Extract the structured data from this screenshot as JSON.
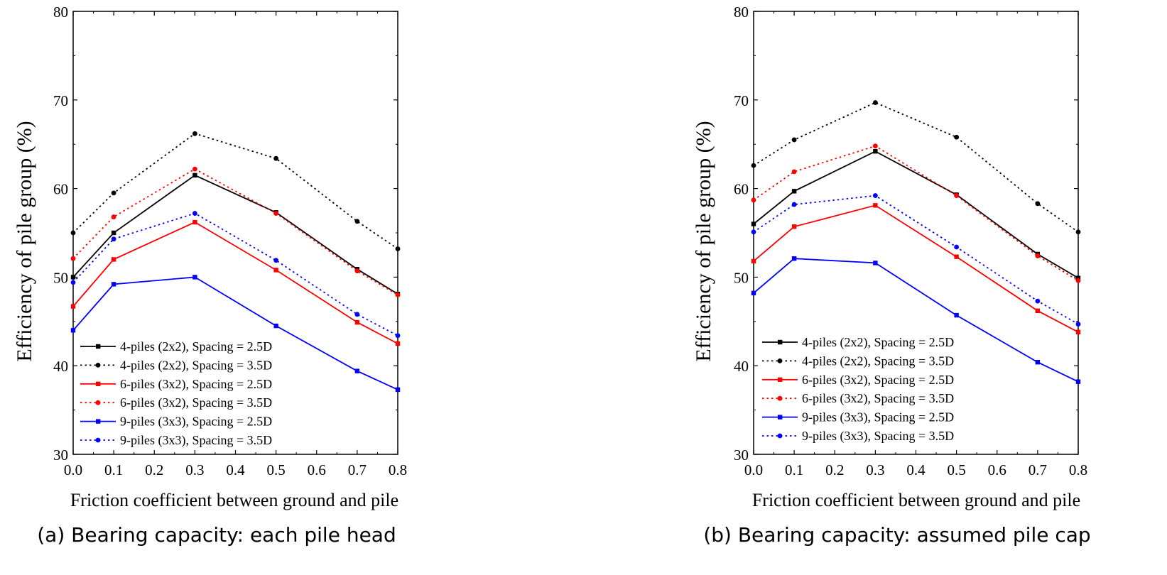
{
  "chart_data": [
    {
      "type": "line",
      "panel": "a",
      "caption": "(a) Bearing capacity: each pile head",
      "xlabel": "Friction coefficient between ground and pile",
      "ylabel": "Efficiency of pile group (%)",
      "xlim": [
        0.0,
        0.8
      ],
      "ylim": [
        30,
        80
      ],
      "xticks": [
        "0.0",
        "0.1",
        "0.2",
        "0.3",
        "0.4",
        "0.5",
        "0.6",
        "0.7",
        "0.8"
      ],
      "yticks": [
        "30",
        "40",
        "50",
        "60",
        "70",
        "80"
      ],
      "legend_position": "lower-left",
      "x": [
        0.0,
        0.1,
        0.3,
        0.5,
        0.7,
        0.8
      ],
      "series": [
        {
          "name": "4-piles (2x2), Spacing = 2.5D",
          "color": "#000000",
          "style": "solid",
          "marker": "square",
          "values": [
            50.0,
            55.0,
            61.5,
            57.3,
            50.9,
            48.1
          ]
        },
        {
          "name": "4-piles (2x2), Spacing = 3.5D",
          "color": "#000000",
          "style": "dotted",
          "marker": "circle",
          "values": [
            55.0,
            59.5,
            66.2,
            63.4,
            56.3,
            53.2
          ]
        },
        {
          "name": "6-piles (3x2), Spacing = 2.5D",
          "color": "#ff0000",
          "style": "solid",
          "marker": "square",
          "values": [
            46.7,
            52.0,
            56.2,
            50.8,
            44.9,
            42.5
          ]
        },
        {
          "name": "6-piles (3x2), Spacing = 3.5D",
          "color": "#ff0000",
          "style": "dotted",
          "marker": "circle",
          "values": [
            52.1,
            56.8,
            62.2,
            57.2,
            50.7,
            48.0
          ]
        },
        {
          "name": "9-piles (3x3), Spacing = 2.5D",
          "color": "#0000ff",
          "style": "solid",
          "marker": "square",
          "values": [
            44.0,
            49.2,
            50.0,
            44.5,
            39.4,
            37.3
          ]
        },
        {
          "name": "9-piles (3x3), Spacing = 3.5D",
          "color": "#0000ff",
          "style": "dotted",
          "marker": "circle",
          "values": [
            49.4,
            54.3,
            57.2,
            51.9,
            45.8,
            43.4
          ]
        }
      ]
    },
    {
      "type": "line",
      "panel": "b",
      "caption": "(b) Bearing capacity: assumed pile cap",
      "xlabel": "Friction coefficient between ground and pile",
      "ylabel": "Efficiency of pile group (%)",
      "xlim": [
        0.0,
        0.8
      ],
      "ylim": [
        30,
        80
      ],
      "xticks": [
        "0.0",
        "0.1",
        "0.2",
        "0.3",
        "0.4",
        "0.5",
        "0.6",
        "0.7",
        "0.8"
      ],
      "yticks": [
        "30",
        "40",
        "50",
        "60",
        "70",
        "80"
      ],
      "legend_position": "lower-left",
      "x": [
        0.0,
        0.1,
        0.3,
        0.5,
        0.7,
        0.8
      ],
      "series": [
        {
          "name": "4-piles (2x2), Spacing = 2.5D",
          "color": "#000000",
          "style": "solid",
          "marker": "square",
          "values": [
            56.0,
            59.7,
            64.2,
            59.3,
            52.6,
            49.9
          ]
        },
        {
          "name": "4-piles (2x2), Spacing = 3.5D",
          "color": "#000000",
          "style": "dotted",
          "marker": "circle",
          "values": [
            62.6,
            65.5,
            69.7,
            65.8,
            58.3,
            55.1
          ]
        },
        {
          "name": "6-piles (3x2), Spacing = 2.5D",
          "color": "#ff0000",
          "style": "solid",
          "marker": "square",
          "values": [
            51.8,
            55.7,
            58.1,
            52.3,
            46.2,
            43.8
          ]
        },
        {
          "name": "6-piles (3x2), Spacing = 3.5D",
          "color": "#ff0000",
          "style": "dotted",
          "marker": "circle",
          "values": [
            58.7,
            61.9,
            64.8,
            59.2,
            52.4,
            49.6
          ]
        },
        {
          "name": "9-piles (3x3), Spacing = 2.5D",
          "color": "#0000ff",
          "style": "solid",
          "marker": "square",
          "values": [
            48.2,
            52.1,
            51.6,
            45.7,
            40.4,
            38.2
          ]
        },
        {
          "name": "9-piles (3x3), Spacing = 3.5D",
          "color": "#0000ff",
          "style": "dotted",
          "marker": "circle",
          "values": [
            55.1,
            58.2,
            59.2,
            53.4,
            47.3,
            44.7
          ]
        }
      ]
    }
  ]
}
